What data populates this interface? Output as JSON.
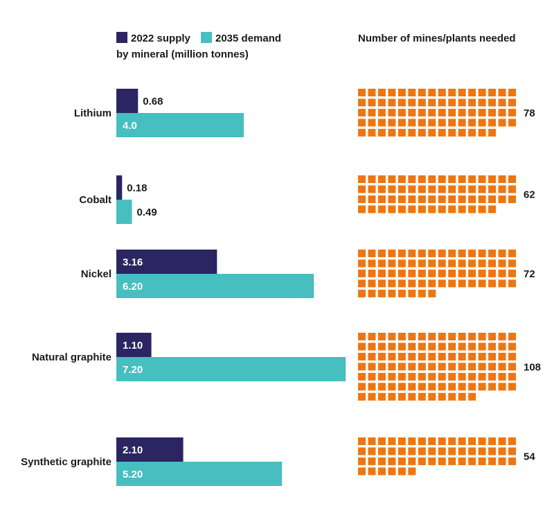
{
  "chart_data": {
    "type": "bar",
    "legend": {
      "supply_label": "2022 supply",
      "demand_label": "2035 demand",
      "subtitle": "by mineral (million tonnes)"
    },
    "waffle_title": "Number of mines/plants needed",
    "categories": [
      "Lithium",
      "Cobalt",
      "Nickel",
      "Natural graphite",
      "Synthetic graphite"
    ],
    "series": [
      {
        "name": "2022 supply",
        "values": [
          0.68,
          0.18,
          3.16,
          1.1,
          2.1
        ],
        "labels": [
          "0.68",
          "0.18",
          "3.16",
          "1.10",
          "2.10"
        ]
      },
      {
        "name": "2035 demand",
        "values": [
          4.0,
          0.49,
          6.2,
          7.2,
          5.2
        ],
        "labels": [
          "4.0",
          "0.49",
          "6.20",
          "7.20",
          "5.20"
        ]
      }
    ],
    "mines_needed": [
      78,
      62,
      72,
      108,
      54
    ],
    "waffle_per_row": 16,
    "colors": {
      "supply": "#2b2562",
      "demand": "#47bec0",
      "mines": "#ed7612",
      "text": "#1a1a1a",
      "text_on_bar": "#ffffff"
    }
  }
}
